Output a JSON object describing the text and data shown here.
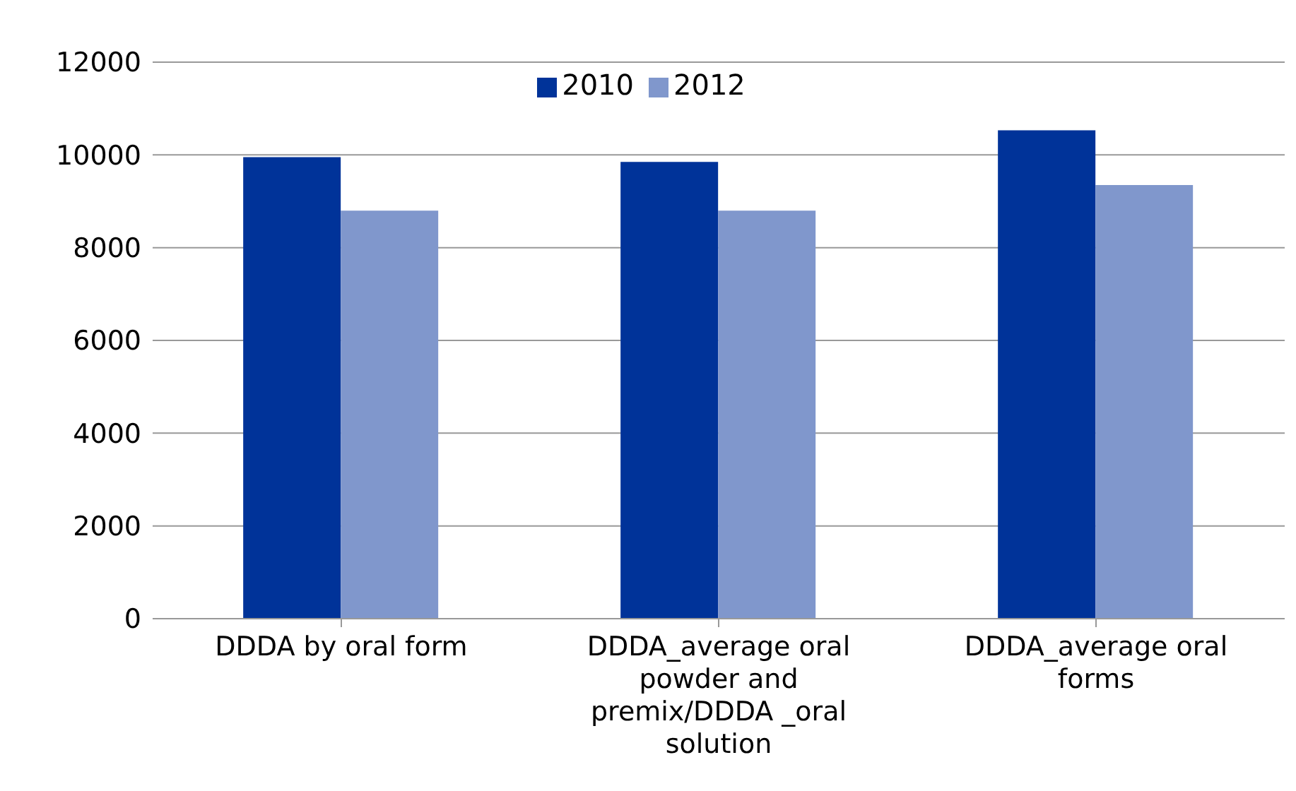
{
  "chart_data": {
    "type": "bar",
    "categories": [
      "DDDA by oral form",
      "DDDA_average oral powder and premix/DDDA _oral solution",
      "DDDA_average oral forms"
    ],
    "series": [
      {
        "name": "2010",
        "color": "#003399",
        "values": [
          9950,
          9850,
          10530
        ]
      },
      {
        "name": "2012",
        "color": "#8097cc",
        "values": [
          8800,
          8800,
          9350
        ]
      }
    ],
    "ylim": [
      0,
      12000
    ],
    "yticks": [
      0,
      2000,
      4000,
      6000,
      8000,
      10000,
      12000
    ],
    "grid": "y",
    "legend": "top"
  }
}
